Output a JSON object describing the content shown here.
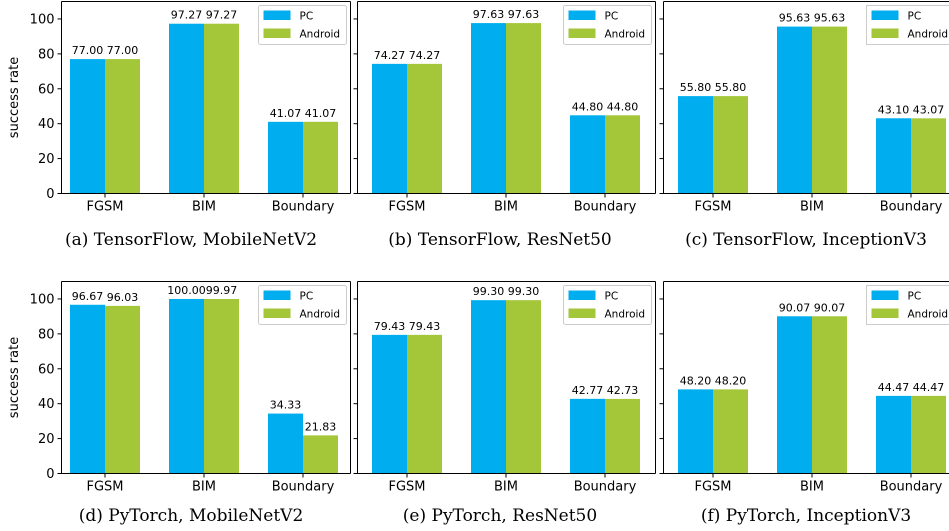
{
  "chart_data": [
    {
      "type": "bar",
      "caption": "(a) TensorFlow, MobileNetV2",
      "categories": [
        "FGSM",
        "BIM",
        "Boundary"
      ],
      "series": [
        {
          "name": "PC",
          "color": "#00aeef",
          "values": [
            77.0,
            97.27,
            41.07
          ]
        },
        {
          "name": "Android",
          "color": "#a4c639",
          "values": [
            77.0,
            97.27,
            41.07
          ]
        }
      ],
      "ylabel": "success rate",
      "yticks": [
        0,
        20,
        40,
        60,
        80,
        100
      ],
      "show_ytick_labels": true,
      "ylim": [
        0,
        110
      ],
      "value_labels": true,
      "legend": "top-right",
      "grid": false
    },
    {
      "type": "bar",
      "caption": "(b) TensorFlow, ResNet50",
      "categories": [
        "FGSM",
        "BIM",
        "Boundary"
      ],
      "series": [
        {
          "name": "PC",
          "color": "#00aeef",
          "values": [
            74.27,
            97.63,
            44.8
          ]
        },
        {
          "name": "Android",
          "color": "#a4c639",
          "values": [
            74.27,
            97.63,
            44.8
          ]
        }
      ],
      "ylabel": "",
      "yticks": [
        0,
        20,
        40,
        60,
        80,
        100
      ],
      "show_ytick_labels": false,
      "ylim": [
        0,
        110
      ],
      "value_labels": true,
      "legend": "top-right",
      "grid": false
    },
    {
      "type": "bar",
      "caption": "(c) TensorFlow, InceptionV3",
      "categories": [
        "FGSM",
        "BIM",
        "Boundary"
      ],
      "series": [
        {
          "name": "PC",
          "color": "#00aeef",
          "values": [
            55.8,
            95.63,
            43.1
          ]
        },
        {
          "name": "Android",
          "color": "#a4c639",
          "values": [
            55.8,
            95.63,
            43.07
          ]
        }
      ],
      "ylabel": "",
      "yticks": [
        0,
        20,
        40,
        60,
        80,
        100
      ],
      "show_ytick_labels": false,
      "ylim": [
        0,
        110
      ],
      "value_labels": true,
      "legend": "top-right",
      "grid": false
    },
    {
      "type": "bar",
      "caption": "(d) PyTorch, MobileNetV2",
      "categories": [
        "FGSM",
        "BIM",
        "Boundary"
      ],
      "series": [
        {
          "name": "PC",
          "color": "#00aeef",
          "values": [
            96.67,
            100.0,
            34.33
          ]
        },
        {
          "name": "Android",
          "color": "#a4c639",
          "values": [
            96.03,
            99.97,
            21.83
          ]
        }
      ],
      "ylabel": "success rate",
      "yticks": [
        0,
        20,
        40,
        60,
        80,
        100
      ],
      "show_ytick_labels": true,
      "ylim": [
        0,
        110
      ],
      "value_labels": true,
      "legend": "top-right",
      "grid": false
    },
    {
      "type": "bar",
      "caption": "(e) PyTorch, ResNet50",
      "categories": [
        "FGSM",
        "BIM",
        "Boundary"
      ],
      "series": [
        {
          "name": "PC",
          "color": "#00aeef",
          "values": [
            79.43,
            99.3,
            42.77
          ]
        },
        {
          "name": "Android",
          "color": "#a4c639",
          "values": [
            79.43,
            99.3,
            42.73
          ]
        }
      ],
      "ylabel": "",
      "yticks": [
        0,
        20,
        40,
        60,
        80,
        100
      ],
      "show_ytick_labels": false,
      "ylim": [
        0,
        110
      ],
      "value_labels": true,
      "legend": "top-right",
      "grid": false
    },
    {
      "type": "bar",
      "caption": "(f) PyTorch, InceptionV3",
      "categories": [
        "FGSM",
        "BIM",
        "Boundary"
      ],
      "series": [
        {
          "name": "PC",
          "color": "#00aeef",
          "values": [
            48.2,
            90.07,
            44.47
          ]
        },
        {
          "name": "Android",
          "color": "#a4c639",
          "values": [
            48.2,
            90.07,
            44.47
          ]
        }
      ],
      "ylabel": "",
      "yticks": [
        0,
        20,
        40,
        60,
        80,
        100
      ],
      "show_ytick_labels": false,
      "ylim": [
        0,
        110
      ],
      "value_labels": true,
      "legend": "top-right",
      "grid": false
    }
  ]
}
